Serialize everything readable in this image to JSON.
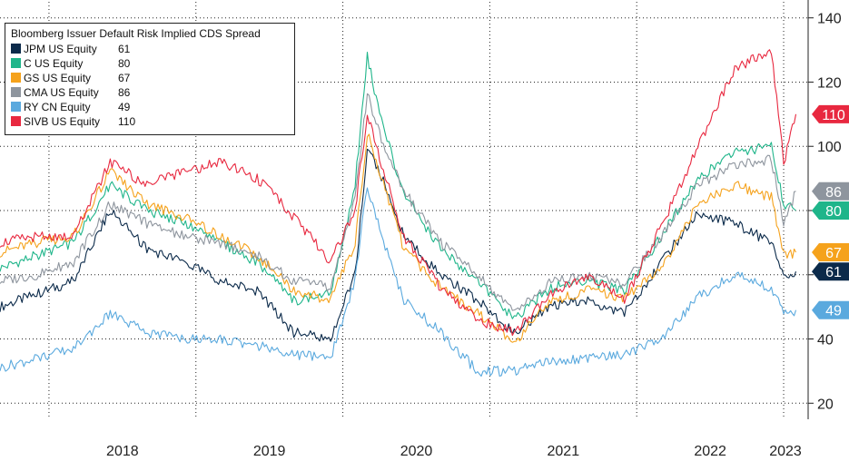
{
  "chart_data": {
    "type": "line",
    "title": "Bloomberg Issuer Default Risk Implied CDS Spread",
    "x_ticks": [
      "2018",
      "2019",
      "2020",
      "2021",
      "2022",
      "2023"
    ],
    "y_ticks": [
      "20",
      "40",
      "60",
      "80",
      "100",
      "120",
      "140"
    ],
    "ylim": [
      15,
      145
    ],
    "xlim": [
      "2017-09",
      "2023-03"
    ],
    "grid": true,
    "legend_position": "top-left",
    "series": [
      {
        "name": "JPM US Equity",
        "last": "61",
        "color": "#0b2a4a",
        "x": [
          "2017-09",
          "2017-12",
          "2018-03",
          "2018-06",
          "2018-09",
          "2018-12",
          "2019-03",
          "2019-06",
          "2019-09",
          "2019-12",
          "2020-02",
          "2020-03",
          "2020-04",
          "2020-06",
          "2020-09",
          "2020-12",
          "2021-03",
          "2021-06",
          "2021-09",
          "2021-12",
          "2022-03",
          "2022-06",
          "2022-09",
          "2022-12",
          "2023-01",
          "2023-02"
        ],
        "values": [
          50,
          54,
          58,
          80,
          68,
          64,
          58,
          55,
          42,
          40,
          60,
          99,
          92,
          72,
          60,
          52,
          42,
          50,
          52,
          48,
          64,
          79,
          76,
          70,
          60,
          61
        ]
      },
      {
        "name": "C US Equity",
        "last": "80",
        "color": "#1fb58a",
        "x": [
          "2017-09",
          "2017-12",
          "2018-03",
          "2018-06",
          "2018-09",
          "2018-12",
          "2019-03",
          "2019-06",
          "2019-09",
          "2019-12",
          "2020-02",
          "2020-03",
          "2020-04",
          "2020-06",
          "2020-09",
          "2020-12",
          "2021-03",
          "2021-06",
          "2021-09",
          "2021-12",
          "2022-03",
          "2022-06",
          "2022-09",
          "2022-12",
          "2023-01",
          "2023-02"
        ],
        "values": [
          62,
          66,
          70,
          88,
          80,
          76,
          70,
          64,
          52,
          54,
          88,
          128,
          110,
          85,
          68,
          58,
          46,
          56,
          58,
          55,
          72,
          90,
          98,
          100,
          82,
          80
        ]
      },
      {
        "name": "GS US Equity",
        "last": "67",
        "color": "#f5a21c",
        "x": [
          "2017-09",
          "2017-12",
          "2018-03",
          "2018-06",
          "2018-09",
          "2018-12",
          "2019-03",
          "2019-06",
          "2019-09",
          "2019-12",
          "2020-02",
          "2020-03",
          "2020-04",
          "2020-06",
          "2020-09",
          "2020-12",
          "2021-03",
          "2021-06",
          "2021-09",
          "2021-12",
          "2022-03",
          "2022-06",
          "2022-09",
          "2022-12",
          "2023-01",
          "2023-02"
        ],
        "values": [
          67,
          70,
          72,
          92,
          82,
          78,
          72,
          66,
          55,
          52,
          70,
          104,
          92,
          68,
          56,
          48,
          39,
          52,
          55,
          53,
          62,
          82,
          88,
          84,
          66,
          67
        ]
      },
      {
        "name": "CMA US Equity",
        "last": "86",
        "color": "#8e959e",
        "x": [
          "2017-09",
          "2017-12",
          "2018-03",
          "2018-06",
          "2018-09",
          "2018-12",
          "2019-03",
          "2019-06",
          "2019-09",
          "2019-12",
          "2020-02",
          "2020-03",
          "2020-04",
          "2020-06",
          "2020-09",
          "2020-12",
          "2021-03",
          "2021-06",
          "2021-09",
          "2021-12",
          "2022-03",
          "2022-06",
          "2022-09",
          "2022-12",
          "2023-01",
          "2023-02"
        ],
        "values": [
          58,
          60,
          64,
          82,
          76,
          72,
          70,
          66,
          58,
          56,
          84,
          116,
          104,
          86,
          70,
          60,
          48,
          58,
          60,
          57,
          72,
          88,
          94,
          96,
          76,
          86
        ]
      },
      {
        "name": "RY CN Equity",
        "last": "49",
        "color": "#5aa9de",
        "x": [
          "2017-09",
          "2017-12",
          "2018-03",
          "2018-06",
          "2018-09",
          "2018-12",
          "2019-03",
          "2019-06",
          "2019-09",
          "2019-12",
          "2020-02",
          "2020-03",
          "2020-04",
          "2020-06",
          "2020-09",
          "2020-12",
          "2021-03",
          "2021-06",
          "2021-09",
          "2021-12",
          "2022-03",
          "2022-06",
          "2022-09",
          "2022-12",
          "2023-01",
          "2023-02"
        ],
        "values": [
          31,
          34,
          37,
          48,
          42,
          40,
          40,
          38,
          35,
          34,
          58,
          88,
          74,
          52,
          42,
          30,
          30,
          33,
          34,
          35,
          40,
          53,
          60,
          56,
          48,
          49
        ]
      },
      {
        "name": "SIVB US Equity",
        "last": "110",
        "color": "#e8283f",
        "x": [
          "2017-09",
          "2017-12",
          "2018-03",
          "2018-06",
          "2018-09",
          "2018-12",
          "2019-03",
          "2019-06",
          "2019-09",
          "2019-12",
          "2020-02",
          "2020-03",
          "2020-04",
          "2020-06",
          "2020-09",
          "2020-12",
          "2021-03",
          "2021-06",
          "2021-09",
          "2021-12",
          "2022-03",
          "2022-06",
          "2022-09",
          "2022-12",
          "2023-01",
          "2023-02"
        ],
        "values": [
          70,
          72,
          72,
          95,
          88,
          92,
          95,
          90,
          78,
          64,
          80,
          110,
          96,
          72,
          56,
          46,
          42,
          54,
          60,
          52,
          75,
          100,
          124,
          130,
          95,
          110
        ]
      }
    ]
  }
}
